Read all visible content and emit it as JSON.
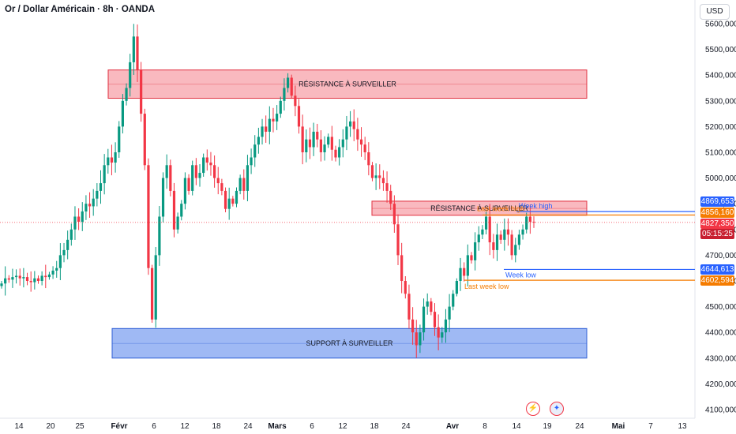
{
  "title": "Or / Dollar Américain · 8h · OANDA",
  "currency": "USD",
  "colors": {
    "up": "#089981",
    "down": "#f23645",
    "resistance_fill": "#f7a1a9",
    "resistance_edge": "#e0303f",
    "support_fill": "#7fa2f0",
    "support_edge": "#2f5fd6",
    "week_line": "#2962ff",
    "last_week_line": "#f57c00",
    "current_tag": "#f23645"
  },
  "tags": {
    "week_high": "4869,653",
    "last_week_high": "4856,160",
    "last_price": "4827,350",
    "countdown": "05:15:25",
    "week_low": "4644,613",
    "last_week_low": "4602,594"
  },
  "icons": {
    "flash": "lightning-icon",
    "flag": "us-flag-icon"
  },
  "chart_data": {
    "type": "candlestick",
    "title": "Or / Dollar Américain · 8h · OANDA",
    "y_axis_label": "USD",
    "ylim": [
      4080,
      5620
    ],
    "y_ticks": [
      "5600,000",
      "5500,000",
      "5400,000",
      "5300,000",
      "5200,000",
      "5100,000",
      "5000,000",
      "4900,000",
      "4800,000",
      "4700,000",
      "4600,000",
      "4500,000",
      "4400,000",
      "4300,000",
      "4200,000",
      "4100,000"
    ],
    "y_tick_values": [
      5600,
      5500,
      5400,
      5300,
      5200,
      5100,
      5000,
      4900,
      4800,
      4700,
      4600,
      4500,
      4400,
      4300,
      4200,
      4100
    ],
    "x_ticks": [
      "14",
      "20",
      "25",
      "Févr",
      "6",
      "12",
      "18",
      "24",
      "Mars",
      "6",
      "12",
      "18",
      "24",
      "Avr",
      "8",
      "14",
      "19",
      "24",
      "Mai",
      "7",
      "13"
    ],
    "x_tick_dates": [
      "2026-01-14",
      "2026-01-20",
      "2026-01-25",
      "2026-02-01",
      "2026-02-06",
      "2026-02-12",
      "2026-02-18",
      "2026-02-24",
      "2026-03-01",
      "2026-03-06",
      "2026-03-12",
      "2026-03-18",
      "2026-03-24",
      "2026-04-01",
      "2026-04-08",
      "2026-04-14",
      "2026-04-19",
      "2026-04-24",
      "2026-05-01",
      "2026-05-07",
      "2026-05-13"
    ],
    "candle_closes": [
      4590,
      4610,
      4605,
      4615,
      4620,
      4610,
      4615,
      4600,
      4595,
      4610,
      4600,
      4620,
      4615,
      4625,
      4640,
      4650,
      4700,
      4720,
      4760,
      4800,
      4850,
      4830,
      4870,
      4900,
      4890,
      4920,
      4950,
      4980,
      5050,
      5080,
      5060,
      5100,
      5200,
      5300,
      5350,
      5450,
      5550,
      5420,
      5250,
      5050,
      4650,
      4450,
      4700,
      4850,
      5000,
      5050,
      4950,
      4800,
      4850,
      4900,
      5000,
      4950,
      5050,
      5000,
      5020,
      5080,
      5060,
      5050,
      5000,
      4980,
      4950,
      4880,
      4920,
      4900,
      4950,
      5000,
      4950,
      5050,
      5080,
      5130,
      5160,
      5200,
      5180,
      5230,
      5220,
      5250,
      5300,
      5350,
      5390,
      5320,
      5280,
      5200,
      5100,
      5150,
      5120,
      5180,
      5150,
      5100,
      5130,
      5160,
      5110,
      5080,
      5120,
      5150,
      5200,
      5220,
      5190,
      5150,
      5130,
      5100,
      5050,
      5000,
      5010,
      5000,
      4980,
      4950,
      4900,
      4820,
      4700,
      4600,
      4550,
      4450,
      4400,
      4350,
      4400,
      4500,
      4520,
      4480,
      4420,
      4380,
      4400,
      4450,
      4500,
      4550,
      4600,
      4650,
      4620,
      4700,
      4680,
      4750,
      4780,
      4800,
      4850,
      4750,
      4720,
      4780,
      4760,
      4800,
      4780,
      4700,
      4740,
      4780,
      4800,
      4850,
      4830,
      4827
    ],
    "zones": [
      {
        "label": "RÉSISTANCE À SURVEILLER",
        "type": "resistance",
        "y_low": 5310,
        "y_high": 5420,
        "mid": 5365
      },
      {
        "label": "RÉSISTANCE À SURVEILLER",
        "type": "resistance",
        "y_low": 4855,
        "y_high": 4910,
        "mid": 4882
      },
      {
        "label": "SUPPORT À SURVEILLER",
        "type": "support",
        "y_low": 4300,
        "y_high": 4415,
        "mid": 4357
      }
    ],
    "levels": [
      {
        "name": "Week high",
        "value": 4869.653
      },
      {
        "name": "Last week high",
        "value": 4856.16
      },
      {
        "name": "Week low",
        "value": 4644.613
      },
      {
        "name": "Last week low",
        "value": 4602.594
      }
    ],
    "last_price": 4827.35,
    "grid": false
  }
}
